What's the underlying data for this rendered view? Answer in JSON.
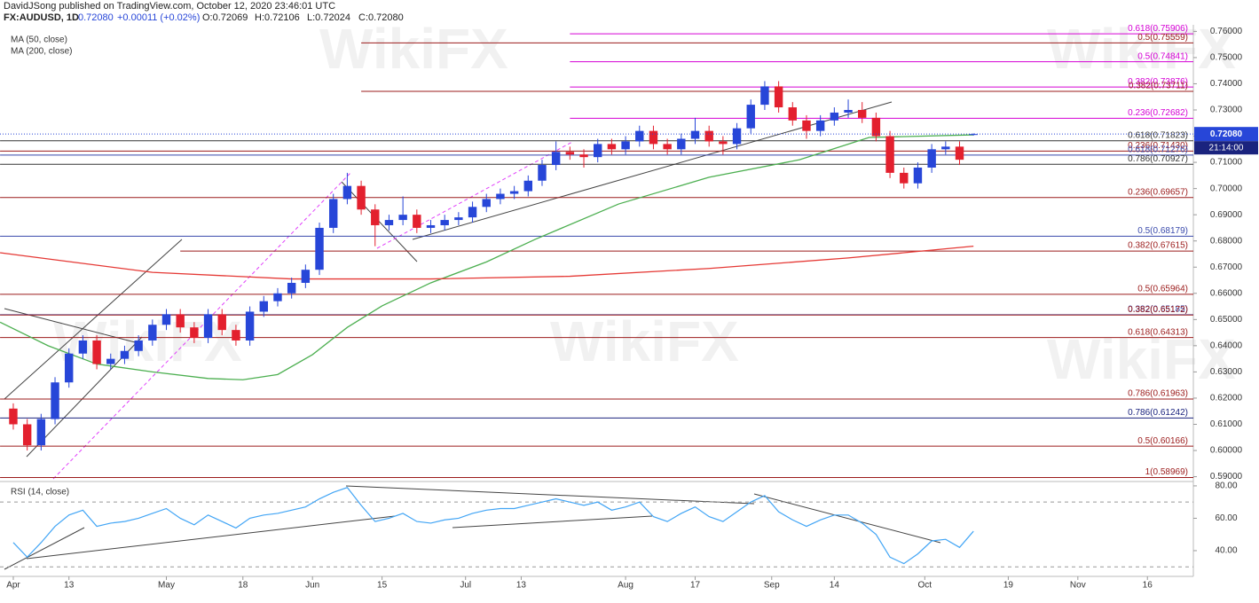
{
  "header": {
    "byline": "DavidJSong published on TradingView.com, October 12, 2020 23:46:01 UTC",
    "symbol": "FX:AUDUSD, 1D",
    "price": "0.72080",
    "change": "+0.00011 (+0.02%)",
    "ohlc": [
      "O:0.72069",
      "H:0.72106",
      "L:0.72024",
      "C:0.72080"
    ]
  },
  "watermark": "WikiFX",
  "chart_data": {
    "type": "candlestick",
    "up_color": "#2746d8",
    "down_color": "#e3202e",
    "xlim": [
      -1.91,
      169.6
    ],
    "xticks": [
      {
        "value": 0,
        "label": "Apr"
      },
      {
        "value": 8,
        "label": "13"
      },
      {
        "value": 22,
        "label": "May"
      },
      {
        "value": 33,
        "label": "18"
      },
      {
        "value": 43,
        "label": "Jun"
      },
      {
        "value": 53,
        "label": "15"
      },
      {
        "value": 65,
        "label": "Jul"
      },
      {
        "value": 73,
        "label": "13"
      },
      {
        "value": 88,
        "label": "Aug"
      },
      {
        "value": 98,
        "label": "17"
      },
      {
        "value": 109,
        "label": "Sep"
      },
      {
        "value": 118,
        "label": "14"
      },
      {
        "value": 131,
        "label": "Oct"
      },
      {
        "value": 143,
        "label": "19"
      },
      {
        "value": 153,
        "label": "Nov"
      },
      {
        "value": 163,
        "label": "16"
      }
    ],
    "ylim": [
      0.5885,
      0.7625
    ],
    "yticks": [
      {
        "value": 0.59,
        "label": "0.59000"
      },
      {
        "value": 0.6,
        "label": "0.60000"
      },
      {
        "value": 0.61,
        "label": "0.61000"
      },
      {
        "value": 0.62,
        "label": "0.62000"
      },
      {
        "value": 0.63,
        "label": "0.63000"
      },
      {
        "value": 0.64,
        "label": "0.64000"
      },
      {
        "value": 0.65,
        "label": "0.65000"
      },
      {
        "value": 0.66,
        "label": "0.66000"
      },
      {
        "value": 0.67,
        "label": "0.67000"
      },
      {
        "value": 0.68,
        "label": "0.68000"
      },
      {
        "value": 0.69,
        "label": "0.69000"
      },
      {
        "value": 0.7,
        "label": "0.70000"
      },
      {
        "value": 0.71,
        "label": "0.71000"
      },
      {
        "value": 0.72,
        "label": "0.72000"
      },
      {
        "value": 0.73,
        "label": "0.73000"
      },
      {
        "value": 0.74,
        "label": "0.74000"
      },
      {
        "value": 0.75,
        "label": "0.75000"
      },
      {
        "value": 0.76,
        "label": "0.76000"
      }
    ],
    "last_price": {
      "value": 0.7208,
      "label": "0.72080"
    },
    "countdown": "21:14:00",
    "candles": {
      "x": [
        0,
        2,
        4,
        6,
        8,
        10,
        12,
        14,
        16,
        18,
        20,
        22,
        24,
        26,
        28,
        30,
        32,
        34,
        36,
        38,
        40,
        42,
        44,
        46,
        48,
        50,
        52,
        54,
        56,
        58,
        60,
        62,
        64,
        66,
        68,
        70,
        72,
        74,
        76,
        78,
        80,
        82,
        84,
        86,
        88,
        90,
        92,
        94,
        96,
        98,
        100,
        102,
        104,
        106,
        108,
        110,
        112,
        114,
        116,
        118,
        120,
        122,
        124,
        126,
        128,
        130,
        132,
        134,
        136,
        138
      ],
      "open": [
        0.616,
        0.61,
        0.602,
        0.612,
        0.626,
        0.637,
        0.642,
        0.633,
        0.635,
        0.638,
        0.642,
        0.648,
        0.652,
        0.647,
        0.643,
        0.652,
        0.646,
        0.642,
        0.653,
        0.657,
        0.66,
        0.664,
        0.669,
        0.685,
        0.696,
        0.701,
        0.692,
        0.686,
        0.688,
        0.69,
        0.685,
        0.686,
        0.688,
        0.689,
        0.693,
        0.696,
        0.698,
        0.699,
        0.703,
        0.709,
        0.714,
        0.713,
        0.712,
        0.717,
        0.715,
        0.718,
        0.722,
        0.717,
        0.715,
        0.719,
        0.722,
        0.718,
        0.717,
        0.723,
        0.732,
        0.739,
        0.731,
        0.726,
        0.722,
        0.726,
        0.729,
        0.73,
        0.727,
        0.72,
        0.706,
        0.702,
        0.708,
        0.715,
        0.716,
        0.72069
      ],
      "high": [
        0.618,
        0.612,
        0.614,
        0.628,
        0.639,
        0.644,
        0.644,
        0.637,
        0.64,
        0.644,
        0.65,
        0.654,
        0.654,
        0.649,
        0.654,
        0.654,
        0.648,
        0.655,
        0.659,
        0.662,
        0.666,
        0.671,
        0.687,
        0.698,
        0.706,
        0.703,
        0.694,
        0.69,
        0.697,
        0.692,
        0.688,
        0.69,
        0.691,
        0.695,
        0.698,
        0.7,
        0.701,
        0.705,
        0.711,
        0.718,
        0.716,
        0.715,
        0.719,
        0.719,
        0.72,
        0.724,
        0.724,
        0.719,
        0.721,
        0.727,
        0.724,
        0.72,
        0.725,
        0.734,
        0.741,
        0.741,
        0.733,
        0.728,
        0.728,
        0.731,
        0.734,
        0.733,
        0.729,
        0.722,
        0.708,
        0.71,
        0.717,
        0.718,
        0.718,
        0.72106
      ],
      "low": [
        0.608,
        0.6,
        0.6,
        0.61,
        0.624,
        0.635,
        0.631,
        0.631,
        0.633,
        0.636,
        0.64,
        0.646,
        0.645,
        0.641,
        0.641,
        0.644,
        0.64,
        0.64,
        0.651,
        0.655,
        0.658,
        0.662,
        0.667,
        0.683,
        0.694,
        0.69,
        0.678,
        0.684,
        0.686,
        0.683,
        0.683,
        0.684,
        0.686,
        0.687,
        0.691,
        0.694,
        0.696,
        0.697,
        0.701,
        0.707,
        0.711,
        0.708,
        0.71,
        0.713,
        0.713,
        0.716,
        0.715,
        0.713,
        0.713,
        0.717,
        0.716,
        0.713,
        0.715,
        0.721,
        0.73,
        0.729,
        0.724,
        0.719,
        0.72,
        0.724,
        0.727,
        0.725,
        0.718,
        0.704,
        0.7,
        0.7,
        0.706,
        0.713,
        0.709,
        0.72024
      ],
      "close": [
        0.61,
        0.602,
        0.612,
        0.626,
        0.637,
        0.642,
        0.633,
        0.635,
        0.638,
        0.642,
        0.648,
        0.652,
        0.647,
        0.643,
        0.652,
        0.646,
        0.642,
        0.653,
        0.657,
        0.66,
        0.664,
        0.669,
        0.685,
        0.696,
        0.701,
        0.692,
        0.686,
        0.688,
        0.69,
        0.685,
        0.686,
        0.688,
        0.689,
        0.693,
        0.696,
        0.698,
        0.699,
        0.703,
        0.709,
        0.714,
        0.713,
        0.712,
        0.717,
        0.715,
        0.718,
        0.722,
        0.717,
        0.715,
        0.719,
        0.722,
        0.718,
        0.717,
        0.723,
        0.732,
        0.739,
        0.731,
        0.726,
        0.722,
        0.726,
        0.729,
        0.73,
        0.727,
        0.72,
        0.706,
        0.702,
        0.708,
        0.715,
        0.716,
        0.711,
        0.7208
      ]
    },
    "series": [
      {
        "name": "MA (50, close)",
        "color": "#4caf50",
        "x": [
          -1.9,
          5,
          12,
          20,
          28,
          33,
          38,
          43,
          48,
          53,
          60,
          68,
          75,
          87,
          100,
          113,
          123,
          138
        ],
        "values": [
          0.649,
          0.64,
          0.633,
          0.63,
          0.6275,
          0.627,
          0.629,
          0.6366,
          0.647,
          0.6552,
          0.664,
          0.672,
          0.6806,
          0.6941,
          0.7043,
          0.711,
          0.7195,
          0.7205
        ]
      },
      {
        "name": "MA (200, close)",
        "color": "#e53935",
        "x": [
          -1.9,
          20,
          40,
          60,
          80,
          100,
          120,
          138
        ],
        "values": [
          0.6755,
          0.668,
          0.6655,
          0.6655,
          0.6665,
          0.6695,
          0.6735,
          0.678
        ]
      }
    ],
    "levels": [
      {
        "value": 0.75906,
        "label": "0.618(0.75906)",
        "color": "#d500d5",
        "start": 80
      },
      {
        "value": 0.75559,
        "label": "0.5(0.75559)",
        "color": "#9b1b1b",
        "start": 50
      },
      {
        "value": 0.74841,
        "label": "0.5(0.74841)",
        "color": "#d500d5",
        "start": 80
      },
      {
        "value": 0.73876,
        "label": "0.382(0.73876)",
        "color": "#d500d5",
        "start": 80
      },
      {
        "value": 0.73711,
        "label": "0.382(0.73711)",
        "color": "#9b1b1b",
        "start": 50
      },
      {
        "value": 0.72682,
        "label": "0.236(0.72682)",
        "color": "#d500d5",
        "start": 80
      },
      {
        "value": 0.71823,
        "label": "0.618(0.71823)",
        "color": "#333333",
        "start": -1.9
      },
      {
        "value": 0.7143,
        "label": "0.236(0.71430)",
        "color": "#9b1b1b",
        "start": -1.9
      },
      {
        "value": 0.71276,
        "label": "0.618(0.71276)",
        "color": "#3949ab",
        "start": -1.9
      },
      {
        "value": 0.70927,
        "label": "0.786(0.70927)",
        "color": "#333333",
        "start": -1.9
      },
      {
        "value": 0.69657,
        "label": "0.236(0.69657)",
        "color": "#9b1b1b",
        "start": -1.9
      },
      {
        "value": 0.68179,
        "label": "0.5(0.68179)",
        "color": "#3949ab",
        "start": -1.9
      },
      {
        "value": 0.67615,
        "label": "0.382(0.67615)",
        "color": "#9b1b1b",
        "start": 24
      },
      {
        "value": 0.65964,
        "label": "0.5(0.65964)",
        "color": "#9b1b1b",
        "start": -1.9
      },
      {
        "value": 0.65185,
        "label": "0.382(0.65185)",
        "color": "#3949ab",
        "start": -1.9
      },
      {
        "value": 0.65172,
        "label": "0.382(0.65172)",
        "color": "#9b1b1b",
        "start": -1.9
      },
      {
        "value": 0.64313,
        "label": "0.618(0.64313)",
        "color": "#9b1b1b",
        "start": -1.9
      },
      {
        "value": 0.61963,
        "label": "0.786(0.61963)",
        "color": "#9b1b1b",
        "start": -1.9
      },
      {
        "value": 0.61242,
        "label": "0.786(0.61242)",
        "color": "#1a237e",
        "start": -1.9
      },
      {
        "value": 0.60166,
        "label": "0.5(0.60166)",
        "color": "#9b1b1b",
        "start": -1.9
      },
      {
        "value": 0.58969,
        "label": "1(0.58969)",
        "color": "#9b1b1b",
        "start": -1.9
      }
    ],
    "rsi": {
      "name": "RSI (14, close)",
      "color": "#42a5f5",
      "ylim": [
        24.1,
        81.6
      ],
      "yticks": [
        {
          "value": 40,
          "label": "40.00"
        },
        {
          "value": 60,
          "label": "60.00"
        },
        {
          "value": 80,
          "label": "80.00"
        }
      ],
      "band": [
        30,
        70
      ],
      "values": [
        45,
        36,
        45,
        55,
        62,
        65,
        55,
        57,
        58,
        60,
        63,
        66,
        60,
        56,
        62,
        58,
        54,
        60,
        62,
        63,
        65,
        67,
        72,
        76,
        79,
        68,
        58,
        60,
        63,
        58,
        57,
        59,
        60,
        63,
        65,
        66,
        66,
        68,
        70,
        72,
        70,
        68,
        70,
        65,
        67,
        70,
        61,
        58,
        63,
        67,
        61,
        58,
        64,
        70,
        74,
        64,
        59,
        55,
        59,
        62,
        62,
        57,
        50,
        36,
        32,
        38,
        46,
        47,
        42,
        52
      ]
    }
  }
}
